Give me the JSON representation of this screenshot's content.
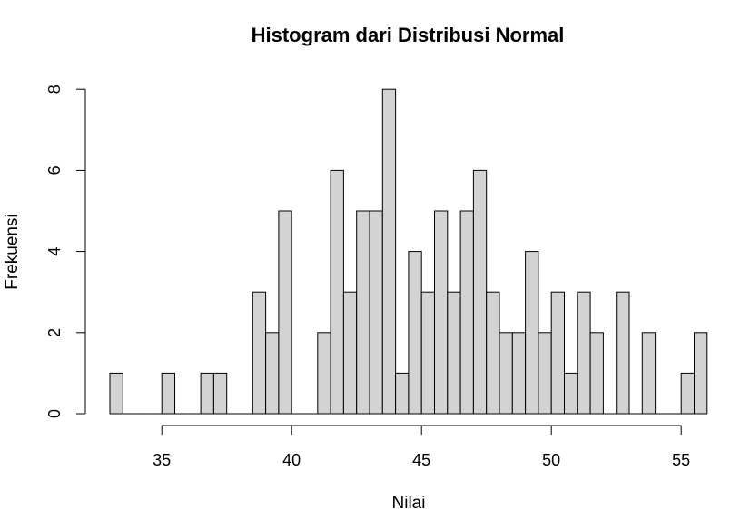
{
  "chart_data": {
    "type": "bar",
    "title": "Histogram dari Distribusi Normal",
    "xlabel": "Nilai",
    "ylabel": "Frekuensi",
    "bin_width": 0.5,
    "x_ticks": [
      "35",
      "40",
      "45",
      "50",
      "55"
    ],
    "y_ticks": [
      "0",
      "2",
      "4",
      "6",
      "8"
    ],
    "xlim": [
      33,
      56
    ],
    "ylim": [
      0,
      8
    ],
    "bar_fill": "#d3d3d3",
    "bar_stroke": "#000000",
    "bins": [
      {
        "start": 33.0,
        "end": 33.5,
        "value": 1
      },
      {
        "start": 35.0,
        "end": 35.5,
        "value": 1
      },
      {
        "start": 36.5,
        "end": 37.0,
        "value": 1
      },
      {
        "start": 37.0,
        "end": 37.5,
        "value": 1
      },
      {
        "start": 38.5,
        "end": 39.0,
        "value": 3
      },
      {
        "start": 39.0,
        "end": 39.5,
        "value": 2
      },
      {
        "start": 39.5,
        "end": 40.0,
        "value": 5
      },
      {
        "start": 41.0,
        "end": 41.5,
        "value": 2
      },
      {
        "start": 41.5,
        "end": 42.0,
        "value": 6
      },
      {
        "start": 42.0,
        "end": 42.5,
        "value": 3
      },
      {
        "start": 42.5,
        "end": 43.0,
        "value": 5
      },
      {
        "start": 43.0,
        "end": 43.5,
        "value": 5
      },
      {
        "start": 43.5,
        "end": 44.0,
        "value": 8
      },
      {
        "start": 44.0,
        "end": 44.5,
        "value": 1
      },
      {
        "start": 44.5,
        "end": 45.0,
        "value": 4
      },
      {
        "start": 45.0,
        "end": 45.5,
        "value": 3
      },
      {
        "start": 45.5,
        "end": 46.0,
        "value": 5
      },
      {
        "start": 46.0,
        "end": 46.5,
        "value": 3
      },
      {
        "start": 46.5,
        "end": 47.0,
        "value": 5
      },
      {
        "start": 47.0,
        "end": 47.5,
        "value": 6
      },
      {
        "start": 47.5,
        "end": 48.0,
        "value": 3
      },
      {
        "start": 48.0,
        "end": 48.5,
        "value": 2
      },
      {
        "start": 48.5,
        "end": 49.0,
        "value": 2
      },
      {
        "start": 49.0,
        "end": 49.5,
        "value": 4
      },
      {
        "start": 49.5,
        "end": 50.0,
        "value": 2
      },
      {
        "start": 50.0,
        "end": 50.5,
        "value": 3
      },
      {
        "start": 50.5,
        "end": 51.0,
        "value": 1
      },
      {
        "start": 51.0,
        "end": 51.5,
        "value": 3
      },
      {
        "start": 51.5,
        "end": 52.0,
        "value": 2
      },
      {
        "start": 52.5,
        "end": 53.0,
        "value": 3
      },
      {
        "start": 53.5,
        "end": 54.0,
        "value": 2
      },
      {
        "start": 55.0,
        "end": 55.5,
        "value": 1
      },
      {
        "start": 55.5,
        "end": 56.0,
        "value": 2
      }
    ]
  }
}
